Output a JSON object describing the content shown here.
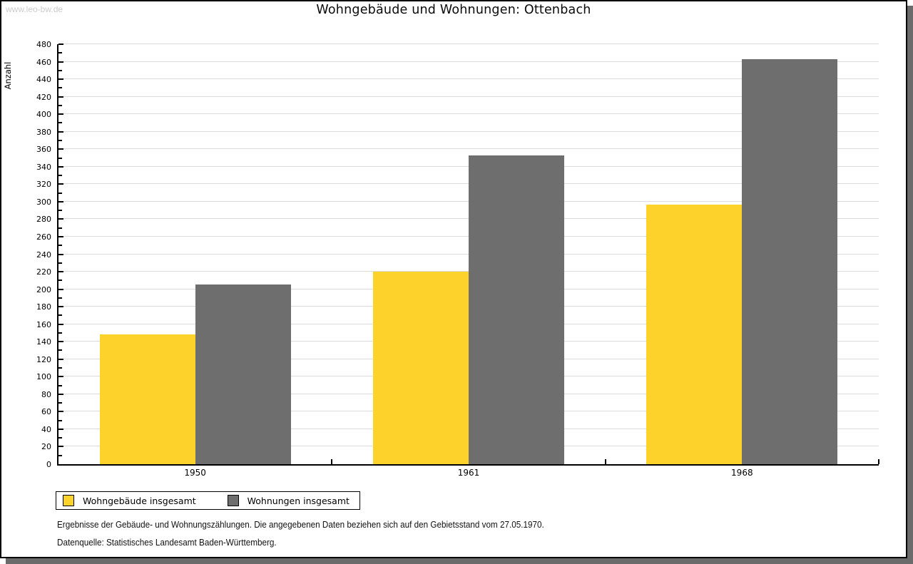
{
  "watermark": "www.leo-bw.de",
  "title": "Wohngebäude und Wohnungen: Ottenbach",
  "chart_data": {
    "type": "bar",
    "title": "Wohngebäude und Wohnungen: Ottenbach",
    "ylabel": "Anzahl",
    "xlabel": "",
    "categories": [
      "1950",
      "1961",
      "1968"
    ],
    "series": [
      {
        "name": "Wohngebäude insgesamt",
        "color": "#FDD32B",
        "values": [
          148,
          220,
          297
        ]
      },
      {
        "name": "Wohnungen insgesamt",
        "color": "#6E6E6E",
        "values": [
          205,
          353,
          463
        ]
      }
    ],
    "ylim": [
      0,
      480
    ],
    "ytick_step": 20,
    "yminortick_step": 10,
    "grid": true,
    "legend_position": "bottom-left"
  },
  "footnotes": [
    "Ergebnisse der Gebäude- und Wohnungszählungen. Die angegebenen Daten beziehen sich auf den Gebietsstand vom 27.05.1970.",
    "Datenquelle: Statistisches Landesamt Baden-Württemberg."
  ],
  "colors": {
    "shadow": "#6B6B6B",
    "gridline": "#DCDCDC",
    "axis": "#000000",
    "card_border": "#000000",
    "watermark": "#CCCCCC"
  }
}
